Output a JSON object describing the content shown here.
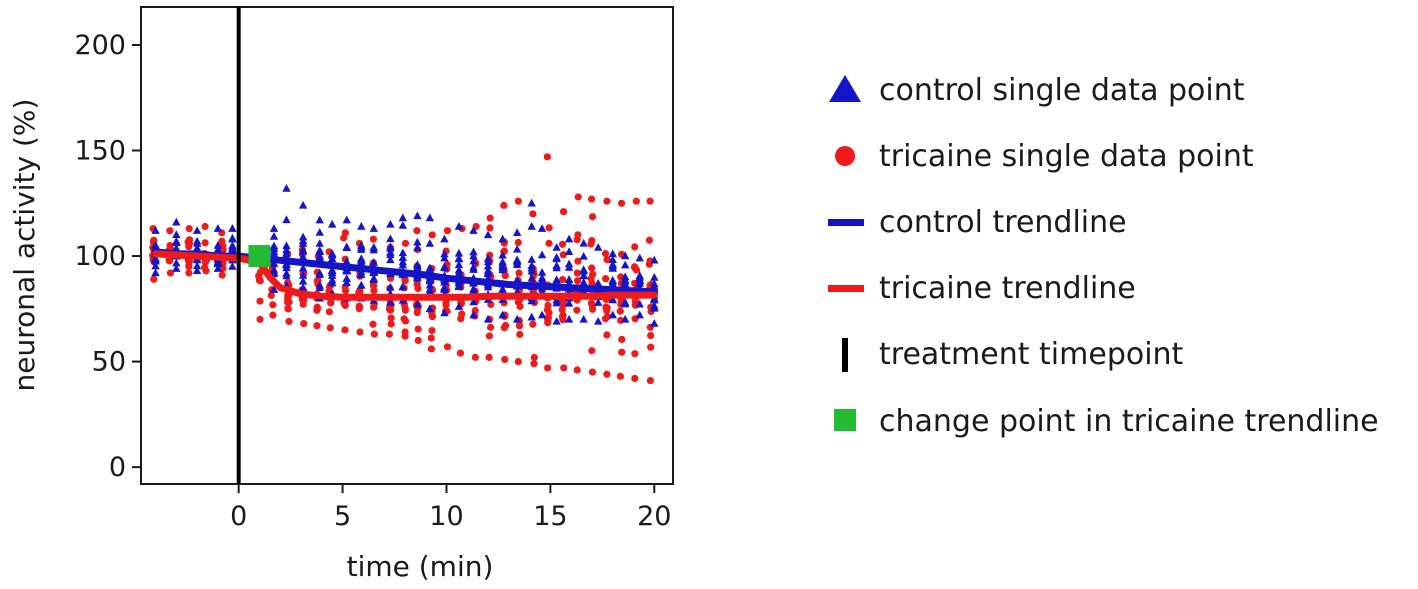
{
  "chart_data": {
    "type": "scatter",
    "xlabel": "time (min)",
    "ylabel": "neuronal activity (%)",
    "xlim": [
      -4.7,
      20.9
    ],
    "ylim": [
      -8,
      218
    ],
    "x_ticks": [
      0,
      5,
      10,
      15,
      20
    ],
    "y_ticks": [
      0,
      50,
      100,
      150,
      200
    ],
    "treatment_time": 0,
    "change_point": {
      "x": 1.0,
      "y": 100
    },
    "colors": {
      "control": "#1515c8",
      "tricaine": "#ee1b1b",
      "treatment": "#000000",
      "change_point": "#22bb33"
    },
    "control_trendline": {
      "x": [
        -4,
        -3,
        -2,
        -1,
        0,
        1,
        2,
        3,
        4,
        5,
        6,
        7,
        8,
        9,
        10,
        11,
        12,
        13,
        14,
        15,
        16,
        17,
        18,
        19,
        20
      ],
      "y": [
        102,
        101,
        101,
        100,
        100,
        99,
        98,
        97,
        96,
        95,
        94,
        93,
        92,
        91,
        89.5,
        88.5,
        87.5,
        86.5,
        86,
        85.5,
        85,
        84.5,
        84,
        83.5,
        83
      ]
    },
    "tricaine_trendline": {
      "x": [
        -4,
        -3,
        -2,
        -1,
        0,
        1,
        1.5,
        2,
        3,
        4,
        5,
        6,
        7,
        8,
        9,
        10,
        11,
        12,
        13,
        14,
        15,
        16,
        17,
        18,
        19,
        20
      ],
      "y": [
        101,
        100.5,
        100,
        99.5,
        99,
        97,
        90,
        85,
        82,
        81,
        80.5,
        80.5,
        80.5,
        80.5,
        80.5,
        80.5,
        80.5,
        81,
        81,
        81,
        81,
        81,
        81,
        81.5,
        81.5,
        81.5
      ]
    },
    "control_points": {
      "times": [
        -4,
        -3,
        -2,
        -1,
        -0.3,
        1.7,
        2.3,
        3.1,
        3.9,
        4.5,
        5.2,
        5.9,
        6.5,
        7.3,
        7.9,
        8.6,
        9.2,
        9.9,
        10.6,
        11.3,
        12.0,
        12.7,
        13.4,
        14.1,
        14.6,
        15.3,
        15.9,
        16.6,
        17.3,
        18.0,
        18.6,
        19.3,
        20.0
      ],
      "min": [
        92,
        94,
        93,
        94,
        95,
        84,
        86,
        82,
        80,
        82,
        80,
        80,
        79,
        78,
        79,
        77,
        75,
        73,
        76,
        72,
        70,
        72,
        70,
        71,
        72,
        69,
        70,
        70,
        69,
        72,
        70,
        72,
        68
      ],
      "max": [
        112,
        116,
        112,
        113,
        113,
        113,
        132,
        124,
        117,
        115,
        117,
        114,
        113,
        115,
        118,
        119,
        118,
        108,
        114,
        112,
        110,
        108,
        111,
        125,
        113,
        104,
        108,
        106,
        104,
        101,
        100,
        99,
        98
      ]
    },
    "tricaine_points": {
      "times": [
        -4.1,
        -3.3,
        -2.4,
        -1.6,
        -0.8,
        1.0,
        1.6,
        2.4,
        3.1,
        3.8,
        4.4,
        5.1,
        5.8,
        6.5,
        7.3,
        8.0,
        8.6,
        9.3,
        10.0,
        10.7,
        11.4,
        12.1,
        12.8,
        13.5,
        14.2,
        14.9,
        15.6,
        16.3,
        17.0,
        17.7,
        18.4,
        19.1,
        19.8
      ],
      "min": [
        89,
        92,
        92,
        93,
        91,
        70,
        72,
        69,
        68,
        67,
        66,
        65,
        64,
        63,
        63,
        62,
        60,
        56,
        57,
        54,
        52,
        52,
        51,
        50,
        49,
        47,
        47,
        46,
        45,
        44,
        43,
        42,
        41
      ],
      "max": [
        113,
        112,
        113,
        114,
        111,
        101,
        98,
        101,
        103,
        100,
        102,
        111,
        106,
        108,
        104,
        106,
        112,
        110,
        112,
        113,
        114,
        118,
        124,
        126,
        120,
        147,
        121,
        128,
        127,
        126,
        125,
        126,
        126
      ]
    },
    "legend": [
      {
        "label": "control single data point",
        "marker": "triangle"
      },
      {
        "label": "tricaine single data point",
        "marker": "circle"
      },
      {
        "label": "control trendline",
        "marker": "blue-line"
      },
      {
        "label": "tricaine trendline",
        "marker": "red-line"
      },
      {
        "label": "treatment timepoint",
        "marker": "vertical-bar"
      },
      {
        "label": "change point in tricaine trendline",
        "marker": "square"
      }
    ]
  }
}
